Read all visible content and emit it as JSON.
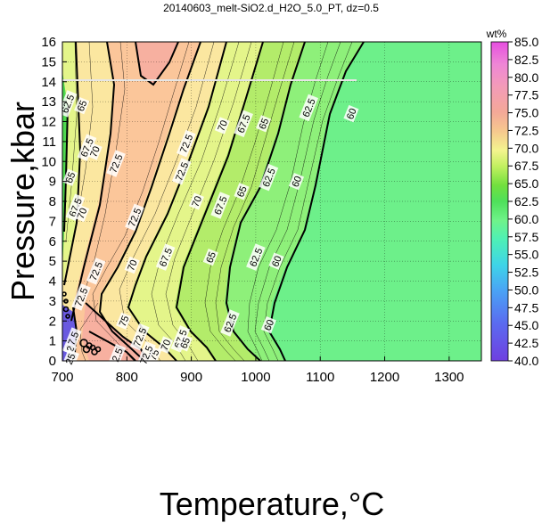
{
  "chart_data": {
    "type": "contour",
    "title": "20140603_melt-SiO2.d_H2O_5.0_PT, dz=0.5",
    "xlabel": "Temperature,°C",
    "ylabel": "Pressure,kbar",
    "xlim": [
      700,
      1350
    ],
    "ylim": [
      0,
      16
    ],
    "x_ticks": [
      700,
      800,
      900,
      1000,
      1100,
      1200,
      1300
    ],
    "y_ticks": [
      0,
      1,
      2,
      3,
      4,
      5,
      6,
      7,
      8,
      9,
      10,
      11,
      12,
      13,
      14,
      15,
      16
    ],
    "grid": true,
    "colorbar": {
      "label": "wt%",
      "min": 40.0,
      "max": 85.0,
      "ticks": [
        "40.0",
        "42.5",
        "45.0",
        "47.5",
        "50.0",
        "52.5",
        "55.0",
        "57.5",
        "60.0",
        "62.5",
        "65.0",
        "67.5",
        "70.0",
        "72.5",
        "75.0",
        "77.5",
        "80.0",
        "82.5",
        "85.0"
      ]
    },
    "high_temperature_plateau_value": 60,
    "contour_labels": [
      {
        "value": "62.5",
        "T": 708,
        "P": 12.9
      },
      {
        "value": "65",
        "T": 730,
        "P": 12.8
      },
      {
        "value": "67.5",
        "T": 738,
        "P": 10.7
      },
      {
        "value": "70",
        "T": 750,
        "P": 10.5
      },
      {
        "value": "72.5",
        "T": 783,
        "P": 9.9
      },
      {
        "value": "72.5",
        "T": 892,
        "P": 10.9
      },
      {
        "value": "70",
        "T": 948,
        "P": 11.8
      },
      {
        "value": "67.5",
        "T": 981,
        "P": 11.9
      },
      {
        "value": "65",
        "T": 1012,
        "P": 11.9
      },
      {
        "value": "62.5",
        "T": 1082,
        "P": 12.7
      },
      {
        "value": "60",
        "T": 1148,
        "P": 12.4
      },
      {
        "value": "65",
        "T": 712,
        "P": 9.2
      },
      {
        "value": "67.5",
        "T": 720,
        "P": 7.7
      },
      {
        "value": "70",
        "T": 730,
        "P": 7.4
      },
      {
        "value": "72.5",
        "T": 812,
        "P": 7.2
      },
      {
        "value": "72.5",
        "T": 885,
        "P": 9.5
      },
      {
        "value": "70",
        "T": 908,
        "P": 8.0
      },
      {
        "value": "67.5",
        "T": 945,
        "P": 7.8
      },
      {
        "value": "65",
        "T": 978,
        "P": 8.5
      },
      {
        "value": "62.5",
        "T": 1020,
        "P": 9.2
      },
      {
        "value": "60",
        "T": 1063,
        "P": 9.0
      },
      {
        "value": "72.5",
        "T": 752,
        "P": 4.5
      },
      {
        "value": "72.5",
        "T": 729,
        "P": 3.2
      },
      {
        "value": "70",
        "T": 808,
        "P": 4.8
      },
      {
        "value": "67.5",
        "T": 860,
        "P": 5.2
      },
      {
        "value": "65",
        "T": 930,
        "P": 5.2
      },
      {
        "value": "62.5",
        "T": 1000,
        "P": 5.2
      },
      {
        "value": "60",
        "T": 1032,
        "P": 5.0
      },
      {
        "value": "75",
        "T": 795,
        "P": 2.0
      },
      {
        "value": "72.5",
        "T": 820,
        "P": 1.2
      },
      {
        "value": "70",
        "T": 860,
        "P": 0.8
      },
      {
        "value": "67.5",
        "T": 883,
        "P": 1.1
      },
      {
        "value": "65",
        "T": 890,
        "P": 0.9
      },
      {
        "value": "62.5",
        "T": 960,
        "P": 1.9
      },
      {
        "value": "60",
        "T": 1020,
        "P": 1.8
      },
      {
        "value": "75",
        "T": 842,
        "P": 0.3
      },
      {
        "value": "72.5",
        "T": 830,
        "P": 0.3
      },
      {
        "value": "2.5",
        "T": 785,
        "P": 0.3
      },
      {
        "value": "67.5",
        "T": 715,
        "P": 1.0
      },
      {
        "value": "2",
        "T": 712,
        "P": 0.6
      },
      {
        "value": "5",
        "T": 716,
        "P": 0.25
      },
      {
        "value": "25",
        "T": 712,
        "P": 0.1
      }
    ]
  }
}
